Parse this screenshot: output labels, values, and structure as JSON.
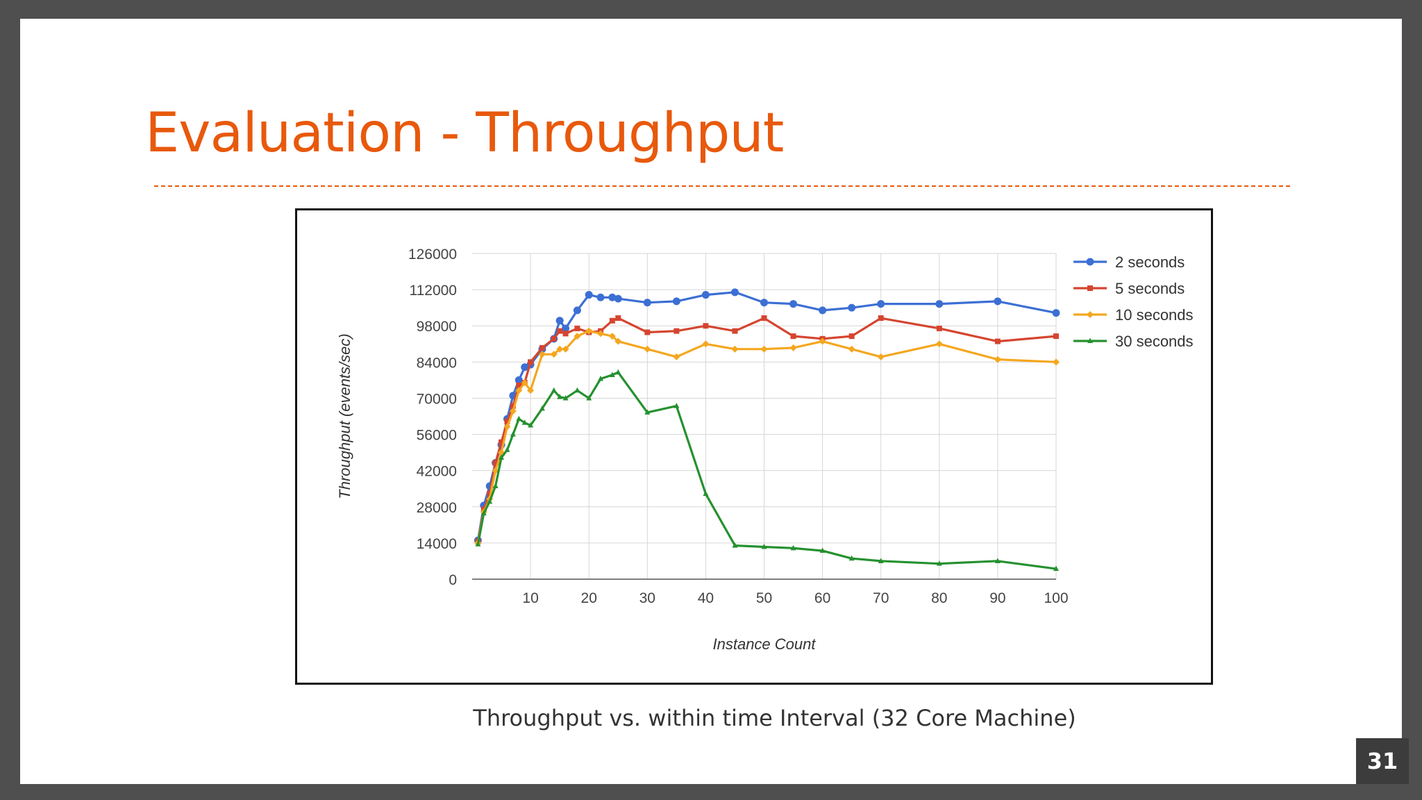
{
  "slide": {
    "title": "Evaluation - Throughput",
    "caption": "Throughput vs. within time Interval (32 Core Machine)",
    "page_number": "31"
  },
  "colors": {
    "title": "#e8590c",
    "series": [
      "#3c6fd4",
      "#d5452f",
      "#f4a71f",
      "#25912f"
    ]
  },
  "chart_data": {
    "type": "line",
    "title": "",
    "xlabel": "Instance Count",
    "ylabel": "Throughput (events/sec)",
    "xlim": [
      0,
      100
    ],
    "ylim": [
      0,
      126000
    ],
    "x_ticks": [
      10,
      20,
      30,
      40,
      50,
      60,
      70,
      80,
      90,
      100
    ],
    "y_ticks": [
      0,
      14000,
      28000,
      42000,
      56000,
      70000,
      84000,
      98000,
      112000,
      126000
    ],
    "grid": true,
    "legend_position": "top-right",
    "x": [
      1,
      2,
      3,
      4,
      5,
      6,
      7,
      8,
      9,
      10,
      12,
      14,
      15,
      16,
      18,
      20,
      22,
      24,
      25,
      30,
      35,
      40,
      45,
      50,
      55,
      60,
      65,
      70,
      80,
      90,
      100
    ],
    "series": [
      {
        "name": "2 seconds",
        "values": [
          15000,
          28500,
          36000,
          45000,
          52000,
          62000,
          71000,
          77000,
          82000,
          83000,
          89000,
          93000,
          100000,
          97000,
          104000,
          110000,
          109000,
          109000,
          108500,
          107000,
          107500,
          110000,
          111000,
          107000,
          106500,
          104000,
          105000,
          106500,
          106500,
          107500,
          103000
        ]
      },
      {
        "name": "5 seconds",
        "values": [
          14500,
          27000,
          33000,
          45000,
          53000,
          61000,
          67000,
          75000,
          76000,
          84000,
          89500,
          93000,
          96000,
          95000,
          97000,
          95500,
          96000,
          100000,
          101000,
          95500,
          96000,
          98000,
          96000,
          101000,
          94000,
          93000,
          94000,
          101000,
          97000,
          92000,
          94000
        ]
      },
      {
        "name": "10 seconds",
        "values": [
          14000,
          26000,
          31000,
          42000,
          49000,
          59000,
          65000,
          73000,
          76000,
          73000,
          87000,
          87000,
          89000,
          89000,
          94000,
          96000,
          95000,
          94000,
          92000,
          89000,
          86000,
          91000,
          89000,
          89000,
          89500,
          92000,
          89000,
          86000,
          91000,
          85000,
          84000
        ]
      },
      {
        "name": "30 seconds",
        "values": [
          13500,
          25500,
          30000,
          36000,
          47000,
          50000,
          56000,
          62000,
          60500,
          59500,
          66000,
          73000,
          70500,
          70000,
          73000,
          70000,
          77500,
          79000,
          80000,
          64500,
          67000,
          33000,
          13000,
          12500,
          12000,
          11000,
          8000,
          7000,
          6000,
          7000,
          4000
        ]
      }
    ]
  }
}
